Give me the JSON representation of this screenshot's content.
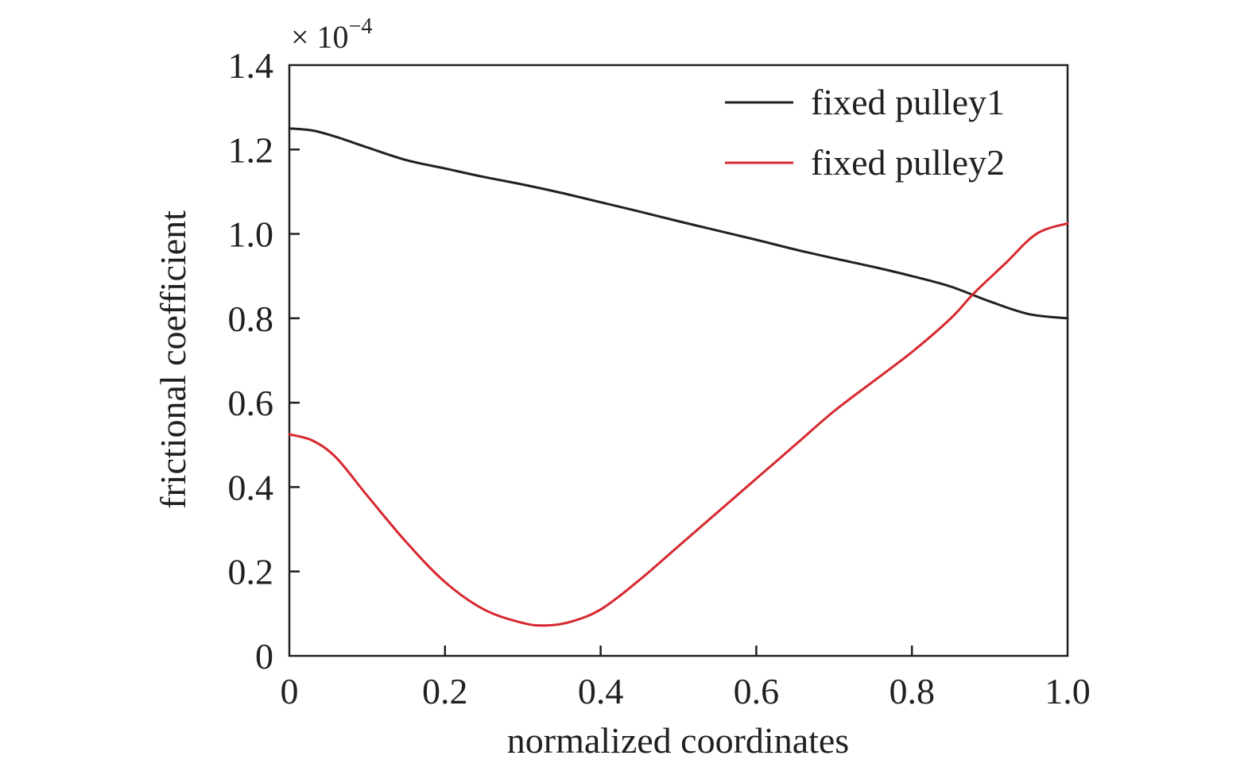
{
  "chart_data": {
    "type": "line",
    "xlabel": "normalized coordinates",
    "ylabel": "frictional coefficient",
    "scale_label": "× 10",
    "scale_exponent": "−4",
    "xlim": [
      0,
      1.0
    ],
    "ylim": [
      0,
      1.4
    ],
    "xticks": [
      "0",
      "0.2",
      "0.4",
      "0.6",
      "0.8",
      "1.0"
    ],
    "xtick_values": [
      0,
      0.2,
      0.4,
      0.6,
      0.8,
      1.0
    ],
    "yticks": [
      "0",
      "0.2",
      "0.4",
      "0.6",
      "0.8",
      "1.0",
      "1.2",
      "1.4"
    ],
    "ytick_values": [
      0,
      0.2,
      0.4,
      0.6,
      0.8,
      1.0,
      1.2,
      1.4
    ],
    "grid": false,
    "legend_position": "top-right",
    "series": [
      {
        "name": "fixed pulley1",
        "color": "#231f20",
        "x": [
          0,
          0.03,
          0.06,
          0.1,
          0.15,
          0.2,
          0.25,
          0.3,
          0.35,
          0.4,
          0.45,
          0.5,
          0.55,
          0.6,
          0.65,
          0.7,
          0.75,
          0.8,
          0.85,
          0.9,
          0.95,
          1.0
        ],
        "y": [
          1.25,
          1.245,
          1.23,
          1.205,
          1.175,
          1.155,
          1.135,
          1.117,
          1.097,
          1.075,
          1.053,
          1.03,
          1.008,
          0.986,
          0.963,
          0.942,
          0.922,
          0.9,
          0.875,
          0.84,
          0.81,
          0.8
        ]
      },
      {
        "name": "fixed pulley2",
        "color": "#d7282f",
        "x": [
          0,
          0.03,
          0.06,
          0.1,
          0.15,
          0.2,
          0.25,
          0.3,
          0.33,
          0.36,
          0.4,
          0.45,
          0.5,
          0.55,
          0.6,
          0.65,
          0.7,
          0.75,
          0.8,
          0.85,
          0.88,
          0.92,
          0.96,
          1.0
        ],
        "y": [
          0.525,
          0.51,
          0.47,
          0.38,
          0.27,
          0.175,
          0.11,
          0.078,
          0.072,
          0.08,
          0.11,
          0.18,
          0.26,
          0.34,
          0.42,
          0.5,
          0.58,
          0.65,
          0.72,
          0.8,
          0.86,
          0.93,
          1.0,
          1.025
        ]
      }
    ]
  }
}
